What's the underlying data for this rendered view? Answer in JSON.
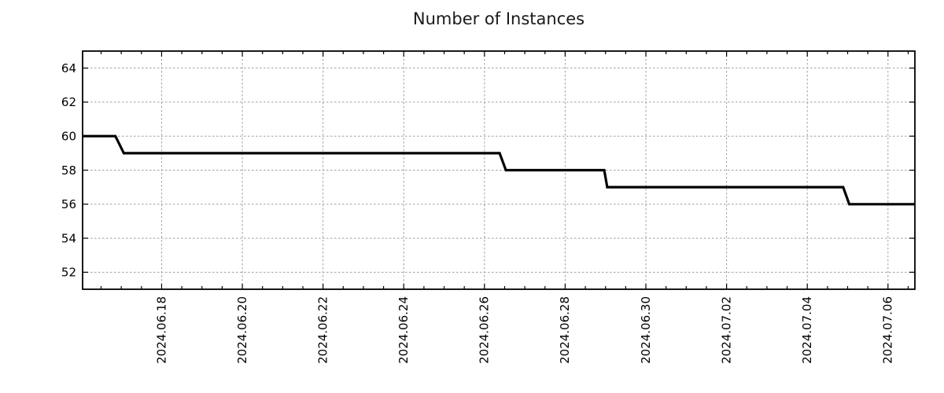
{
  "chart_data": {
    "type": "line",
    "title": "Number of Instances",
    "xlabel": "",
    "ylabel": "",
    "x_type": "datetime",
    "x_domain": [
      "2024.06.16 01:00",
      "2024.07.06 16:00"
    ],
    "y_domain": [
      51,
      65
    ],
    "x_major_ticks": [
      "2024.06.18",
      "2024.06.20",
      "2024.06.22",
      "2024.06.24",
      "2024.06.26",
      "2024.06.28",
      "2024.06.30",
      "2024.07.02",
      "2024.07.04",
      "2024.07.06"
    ],
    "x_minor_tick_interval_hours": 12,
    "y_ticks": [
      52,
      54,
      56,
      58,
      60,
      62,
      64
    ],
    "grid": "dashed, major ticks only, both axes",
    "legend": "none",
    "series": [
      {
        "name": "Number of Instances",
        "color": "#000000",
        "points": [
          {
            "t": "2024.06.16 01:00",
            "v": 60
          },
          {
            "t": "2024.06.16 20:30",
            "v": 60
          },
          {
            "t": "2024.06.17 01:30",
            "v": 59
          },
          {
            "t": "2024.06.26 09:00",
            "v": 59
          },
          {
            "t": "2024.06.26 12:45",
            "v": 58
          },
          {
            "t": "2024.06.28 23:15",
            "v": 58
          },
          {
            "t": "2024.06.29 01:00",
            "v": 57
          },
          {
            "t": "2024.07.04 21:20",
            "v": 57
          },
          {
            "t": "2024.07.05 01:00",
            "v": 56
          },
          {
            "t": "2024.07.06 16:00",
            "v": 56
          }
        ]
      }
    ],
    "colors": {
      "line": "#000000",
      "grid": "#a0a0a0",
      "border": "#000000",
      "text": "#000000",
      "background": "#ffffff"
    }
  }
}
